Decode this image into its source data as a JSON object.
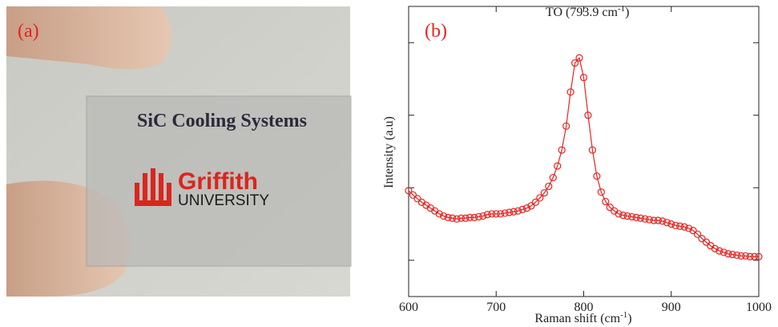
{
  "photo": {
    "label": "(a)",
    "caption": "SiC Cooling Systems",
    "logo_name": "Griffith",
    "logo_sub": "UNIVERSITY"
  },
  "chart_data": {
    "type": "line",
    "panel_label": "(b)",
    "annotation": {
      "text": "TO (793.9 cm",
      "sup": "-1",
      "tail": ")"
    },
    "x_label": {
      "text": "Raman shift (cm",
      "sup": "-1",
      "tail": ")"
    },
    "y_label": "Intensity (a.u)",
    "color": "#e8231f",
    "x": [
      600,
      605,
      610,
      615,
      620,
      625,
      630,
      635,
      640,
      645,
      650,
      655,
      660,
      665,
      670,
      675,
      680,
      685,
      690,
      695,
      700,
      705,
      710,
      715,
      720,
      725,
      730,
      735,
      740,
      745,
      750,
      755,
      760,
      765,
      770,
      775,
      780,
      785,
      790,
      795,
      800,
      805,
      810,
      815,
      820,
      825,
      830,
      835,
      840,
      845,
      850,
      855,
      860,
      865,
      870,
      875,
      880,
      885,
      890,
      895,
      900,
      905,
      910,
      915,
      920,
      925,
      930,
      935,
      940,
      945,
      950,
      955,
      960,
      965,
      970,
      975,
      980,
      985,
      990,
      995,
      1000
    ],
    "values": [
      1.46,
      1.4,
      1.35,
      1.3,
      1.26,
      1.22,
      1.18,
      1.14,
      1.11,
      1.09,
      1.08,
      1.07,
      1.08,
      1.08,
      1.09,
      1.09,
      1.1,
      1.11,
      1.13,
      1.14,
      1.14,
      1.14,
      1.15,
      1.16,
      1.17,
      1.18,
      1.2,
      1.22,
      1.25,
      1.3,
      1.36,
      1.43,
      1.52,
      1.64,
      1.8,
      2.02,
      2.35,
      2.82,
      3.22,
      3.29,
      3.02,
      2.5,
      2.02,
      1.66,
      1.44,
      1.31,
      1.23,
      1.18,
      1.14,
      1.12,
      1.11,
      1.1,
      1.09,
      1.08,
      1.07,
      1.06,
      1.05,
      1.05,
      1.04,
      1.02,
      1.0,
      0.98,
      0.97,
      0.96,
      0.94,
      0.91,
      0.86,
      0.8,
      0.75,
      0.7,
      0.66,
      0.63,
      0.61,
      0.59,
      0.58,
      0.57,
      0.56,
      0.56,
      0.55,
      0.55,
      0.55
    ],
    "xlim": [
      600,
      1000
    ],
    "xticks": [
      600,
      700,
      800,
      900,
      1000
    ],
    "ylim": [
      0,
      4
    ],
    "yticks": [
      0.5,
      1.5,
      2.5,
      3.5
    ]
  }
}
